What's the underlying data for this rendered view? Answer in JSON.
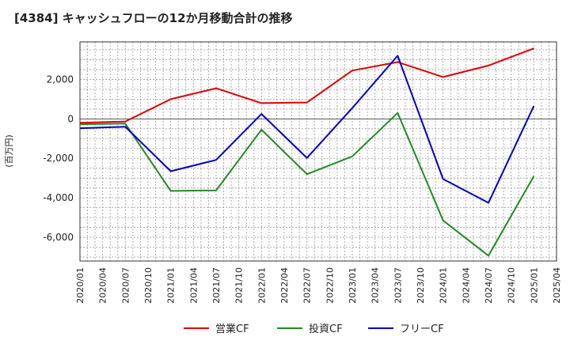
{
  "chart_data": {
    "type": "line",
    "title": "[4384]  キャッシュフローの12か月移動合計の推移",
    "ylabel": "(百万円)",
    "xlabel": "",
    "x": [
      "2020/01",
      "2020/04",
      "2020/07",
      "2020/10",
      "2021/01",
      "2021/04",
      "2021/07",
      "2021/10",
      "2022/01",
      "2022/04",
      "2022/07",
      "2022/10",
      "2023/01",
      "2023/04",
      "2023/07",
      "2023/10",
      "2024/01",
      "2024/04",
      "2024/07",
      "2024/10",
      "2025/01",
      "2025/04"
    ],
    "ylim": [
      -7200,
      3900
    ],
    "yticks": [
      2000,
      0,
      -2000,
      -4000,
      -6000
    ],
    "ytick_labels": [
      "2,000",
      "0",
      "-2,000",
      "-4,000",
      "-6,000"
    ],
    "grid": true,
    "legend_position": "bottom",
    "series": [
      {
        "name": "営業CF",
        "color": "#e00000",
        "values": [
          -200,
          null,
          -130,
          null,
          1000,
          null,
          1550,
          null,
          800,
          null,
          830,
          null,
          2450,
          null,
          2880,
          null,
          2120,
          null,
          2700,
          null,
          3570,
          null
        ]
      },
      {
        "name": "投資CF",
        "color": "#228b22",
        "values": [
          -270,
          null,
          -240,
          null,
          -3650,
          null,
          -3620,
          null,
          -550,
          null,
          -2800,
          null,
          -1900,
          null,
          300,
          null,
          -5150,
          null,
          -6930,
          null,
          -2900,
          null
        ]
      },
      {
        "name": "フリーCF",
        "color": "#0000cc",
        "values": [
          -470,
          null,
          -400,
          null,
          -2650,
          null,
          -2080,
          null,
          250,
          null,
          -1980,
          null,
          550,
          null,
          3200,
          null,
          -3050,
          null,
          -4250,
          null,
          650,
          null
        ]
      }
    ]
  }
}
